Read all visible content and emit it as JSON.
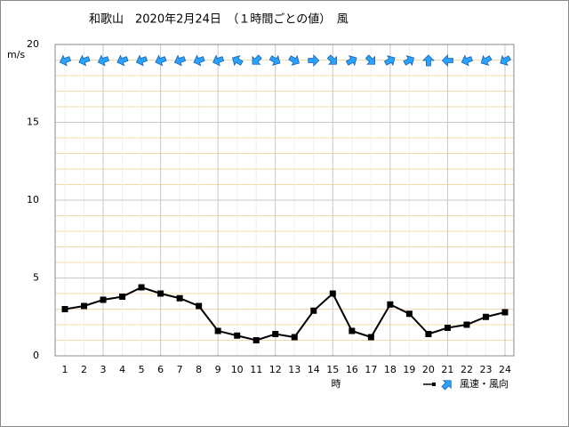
{
  "chart_data": {
    "type": "line",
    "title": "和歌山　2020年2月24日　（１時間ごとの値）　風",
    "y_label": "m/s",
    "x_label": "時",
    "categories": [
      "1",
      "2",
      "3",
      "4",
      "5",
      "6",
      "7",
      "8",
      "9",
      "10",
      "11",
      "12",
      "13",
      "14",
      "15",
      "16",
      "17",
      "18",
      "19",
      "20",
      "21",
      "22",
      "23",
      "24"
    ],
    "series": [
      {
        "name": "風速・風向",
        "color": "#000000",
        "values": [
          3.0,
          3.2,
          3.6,
          3.8,
          4.4,
          4.0,
          3.7,
          3.2,
          1.6,
          1.3,
          1.0,
          1.4,
          1.2,
          2.9,
          4.0,
          1.6,
          1.2,
          3.3,
          2.7,
          1.4,
          1.8,
          2.0,
          2.5,
          2.8
        ],
        "directions": [
          250,
          250,
          250,
          250,
          250,
          250,
          250,
          250,
          250,
          300,
          225,
          120,
          120,
          90,
          135,
          60,
          135,
          60,
          60,
          0,
          270,
          250,
          240,
          240
        ],
        "direction_color": "#29a3ff"
      }
    ],
    "ylim": [
      0,
      20
    ],
    "yticks": [
      0,
      5,
      10,
      15,
      20
    ],
    "minor_yticks": [
      1,
      2,
      3,
      4,
      6,
      7,
      8,
      9,
      11,
      12,
      13,
      14,
      16,
      17,
      18,
      19
    ],
    "xgrid_step": 3,
    "grid": true
  }
}
